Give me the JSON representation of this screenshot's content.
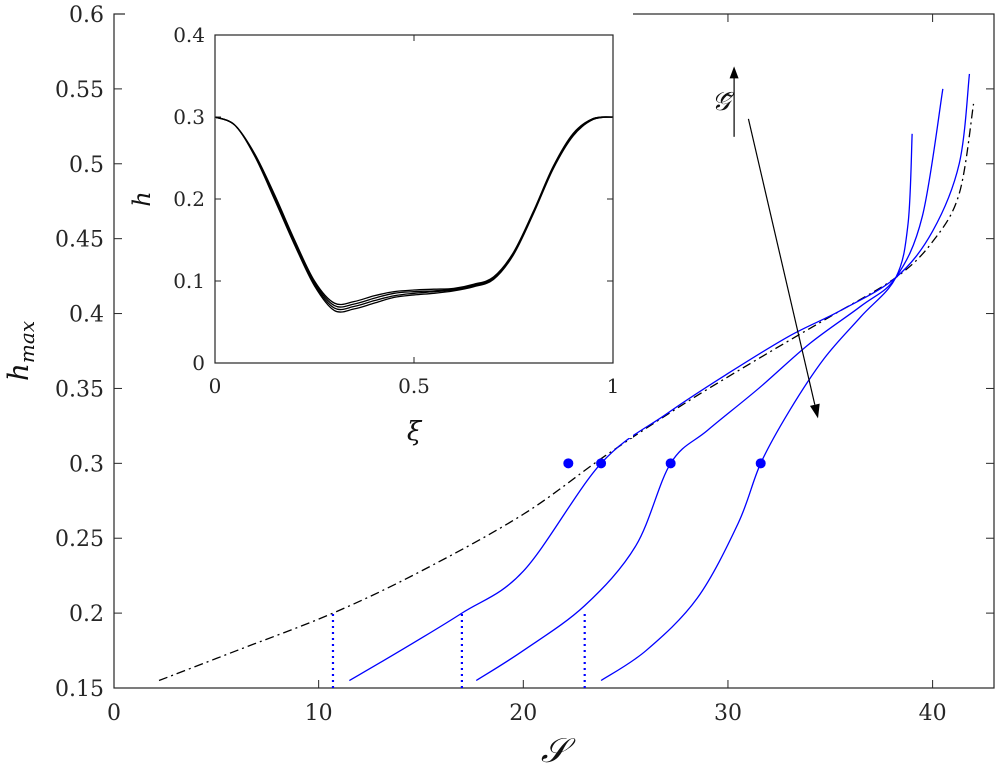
{
  "chart_data": [
    {
      "type": "line",
      "xlabel": "𝒮",
      "ylabel_base": "h",
      "ylabel_sub": "max",
      "xlim": [
        0,
        43
      ],
      "ylim": [
        0.15,
        0.6
      ],
      "xticks": [
        0,
        10,
        20,
        30,
        40
      ],
      "yticks": [
        0.15,
        0.2,
        0.25,
        0.3,
        0.35,
        0.4,
        0.45,
        0.5,
        0.55,
        0.6
      ],
      "xtick_labels": [
        "0",
        "10",
        "20",
        "30",
        "40"
      ],
      "ytick_labels": [
        "0.15",
        "0.2",
        "0.25",
        "0.3",
        "0.35",
        "0.4",
        "0.45",
        "0.5",
        "0.55",
        "0.6"
      ],
      "grid": false,
      "annotation": {
        "text": "𝒢̃",
        "type": "arrow",
        "from": [
          31.0,
          0.53
        ],
        "to": [
          34.4,
          0.33
        ]
      },
      "series": [
        {
          "style": "dash-dot",
          "color": "#000000",
          "x": [
            2.2,
            6,
            10.7,
            15,
            20,
            24,
            28,
            32,
            35,
            38.2,
            40,
            41.3,
            42.0
          ],
          "y": [
            0.155,
            0.175,
            0.2,
            0.228,
            0.266,
            0.305,
            0.341,
            0.374,
            0.398,
            0.424,
            0.448,
            0.48,
            0.54
          ]
        },
        {
          "style": "solid",
          "color": "#0000ff",
          "x": [
            11.5,
            14,
            17,
            20,
            23.8,
            27,
            30,
            33,
            35.5,
            38.2,
            40,
            41.3,
            41.8
          ],
          "y": [
            0.155,
            0.175,
            0.2,
            0.228,
            0.3,
            0.333,
            0.36,
            0.385,
            0.402,
            0.424,
            0.455,
            0.5,
            0.56
          ]
        },
        {
          "style": "solid",
          "color": "#0000ff",
          "x": [
            17.7,
            20,
            23,
            25.5,
            27.2,
            29,
            31.5,
            34,
            36.5,
            38.2,
            39.5,
            40.5
          ],
          "y": [
            0.155,
            0.175,
            0.205,
            0.245,
            0.3,
            0.322,
            0.35,
            0.38,
            0.405,
            0.424,
            0.465,
            0.55
          ]
        },
        {
          "style": "solid",
          "color": "#0000ff",
          "x": [
            23.8,
            26,
            28.5,
            30.5,
            31.6,
            33,
            34.7,
            36.5,
            38.2,
            38.8,
            39.0
          ],
          "y": [
            0.155,
            0.175,
            0.21,
            0.26,
            0.3,
            0.335,
            0.37,
            0.398,
            0.424,
            0.46,
            0.52
          ]
        }
      ],
      "markers": {
        "color": "#0000ff",
        "x": [
          22.2,
          23.8,
          27.2,
          31.6
        ],
        "y": [
          0.3,
          0.3,
          0.3,
          0.3
        ]
      },
      "dotted_verticals": {
        "color": "#0000ff",
        "x": [
          10.7,
          17.0,
          23.0
        ],
        "y_top": [
          0.2,
          0.2,
          0.2
        ]
      }
    },
    {
      "type": "line",
      "xlabel": "ξ",
      "ylabel": "h",
      "xlim": [
        0,
        1
      ],
      "ylim": [
        0,
        0.4
      ],
      "xticks": [
        0,
        0.5,
        1
      ],
      "yticks": [
        0,
        0.1,
        0.2,
        0.3,
        0.4
      ],
      "xtick_labels": [
        "0",
        "0.5",
        "1"
      ],
      "ytick_labels": [
        "0",
        "0.1",
        "0.2",
        "0.3",
        "0.4"
      ],
      "series": [
        {
          "color": "#000000",
          "x": [
            0,
            0.05,
            0.1,
            0.15,
            0.2,
            0.25,
            0.3,
            0.35,
            0.4,
            0.45,
            0.5,
            0.55,
            0.6,
            0.65,
            0.7,
            0.75,
            0.8,
            0.85,
            0.9,
            0.95,
            1.0
          ],
          "y": [
            0.3,
            0.29,
            0.255,
            0.205,
            0.15,
            0.1,
            0.073,
            0.075,
            0.082,
            0.087,
            0.089,
            0.09,
            0.091,
            0.096,
            0.105,
            0.135,
            0.185,
            0.24,
            0.28,
            0.298,
            0.3
          ]
        },
        {
          "color": "#000000",
          "x": [
            0,
            0.05,
            0.1,
            0.15,
            0.2,
            0.25,
            0.3,
            0.35,
            0.4,
            0.45,
            0.5,
            0.55,
            0.6,
            0.65,
            0.7,
            0.75,
            0.8,
            0.85,
            0.9,
            0.95,
            1.0
          ],
          "y": [
            0.3,
            0.29,
            0.254,
            0.203,
            0.148,
            0.098,
            0.07,
            0.072,
            0.079,
            0.085,
            0.087,
            0.088,
            0.09,
            0.095,
            0.104,
            0.134,
            0.184,
            0.239,
            0.279,
            0.298,
            0.3
          ]
        },
        {
          "color": "#000000",
          "x": [
            0,
            0.05,
            0.1,
            0.15,
            0.2,
            0.25,
            0.3,
            0.35,
            0.4,
            0.45,
            0.5,
            0.55,
            0.6,
            0.65,
            0.7,
            0.75,
            0.8,
            0.85,
            0.9,
            0.95,
            1.0
          ],
          "y": [
            0.3,
            0.29,
            0.253,
            0.201,
            0.146,
            0.096,
            0.067,
            0.069,
            0.076,
            0.082,
            0.085,
            0.087,
            0.089,
            0.094,
            0.103,
            0.133,
            0.183,
            0.238,
            0.278,
            0.297,
            0.3
          ]
        },
        {
          "color": "#000000",
          "x": [
            0,
            0.05,
            0.1,
            0.15,
            0.2,
            0.25,
            0.3,
            0.35,
            0.4,
            0.45,
            0.5,
            0.55,
            0.6,
            0.65,
            0.7,
            0.75,
            0.8,
            0.85,
            0.9,
            0.95,
            1.0
          ],
          "y": [
            0.3,
            0.29,
            0.252,
            0.199,
            0.144,
            0.094,
            0.064,
            0.066,
            0.073,
            0.08,
            0.083,
            0.085,
            0.088,
            0.093,
            0.102,
            0.132,
            0.182,
            0.237,
            0.277,
            0.297,
            0.3
          ]
        }
      ]
    }
  ]
}
